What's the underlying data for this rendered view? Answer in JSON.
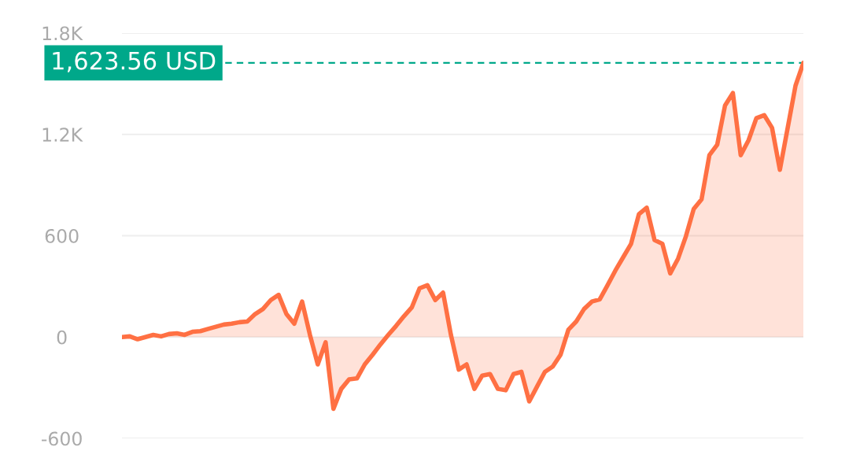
{
  "chart_data": {
    "type": "area",
    "categories": [
      null,
      null,
      null,
      null,
      null,
      null,
      null,
      null,
      null,
      null,
      null,
      null,
      null,
      null,
      null,
      null,
      null,
      null,
      null,
      null,
      null,
      null,
      null,
      null,
      null,
      null,
      null,
      null,
      null,
      null,
      null,
      null,
      null,
      null,
      null,
      null,
      null,
      null,
      null,
      null,
      null,
      null,
      null,
      null,
      null,
      null,
      null,
      null,
      null,
      null,
      null,
      null,
      null,
      null,
      null,
      null,
      null,
      null,
      null,
      null,
      null,
      null,
      null,
      null,
      null,
      null,
      null,
      null,
      null,
      null,
      null,
      null,
      null,
      null,
      null,
      null,
      null,
      null,
      null,
      null,
      null,
      null,
      null,
      null,
      null,
      null,
      null,
      null
    ],
    "series": [
      {
        "color": "#ff7043",
        "values": [
          0,
          4,
          -13,
          0,
          13,
          4,
          18,
          22,
          13,
          31,
          35,
          48,
          61,
          74,
          79,
          88,
          92,
          136,
          166,
          219,
          250,
          136,
          79,
          210,
          13,
          -162,
          -31,
          -425,
          -307,
          -250,
          -245,
          -162,
          -105,
          -44,
          13,
          66,
          123,
          175,
          289,
          307,
          219,
          263,
          13,
          -193,
          -162,
          -307,
          -228,
          -219,
          -307,
          -315,
          -219,
          -206,
          -381,
          -293,
          -206,
          -175,
          -105,
          44,
          92,
          166,
          210,
          223,
          307,
          394,
          473,
          552,
          727,
          766,
          574,
          552,
          377,
          464,
          596,
          758,
          815,
          1077,
          1139,
          1371,
          1445,
          1077,
          1165,
          1296,
          1314,
          1239,
          990,
          1239,
          1489,
          1623.56
        ]
      }
    ],
    "ylim": [
      -600,
      1800
    ],
    "yticks": [
      {
        "value": 1800,
        "label": "1.8K"
      },
      {
        "value": 1200,
        "label": "1.2K"
      },
      600,
      0,
      -600
    ],
    "grid": "y",
    "ref_lines": [
      {
        "axis": "y",
        "value": 1623.56,
        "label": "1,623.56 USD",
        "color": "#00a88a",
        "line_style": "dashed"
      }
    ]
  }
}
